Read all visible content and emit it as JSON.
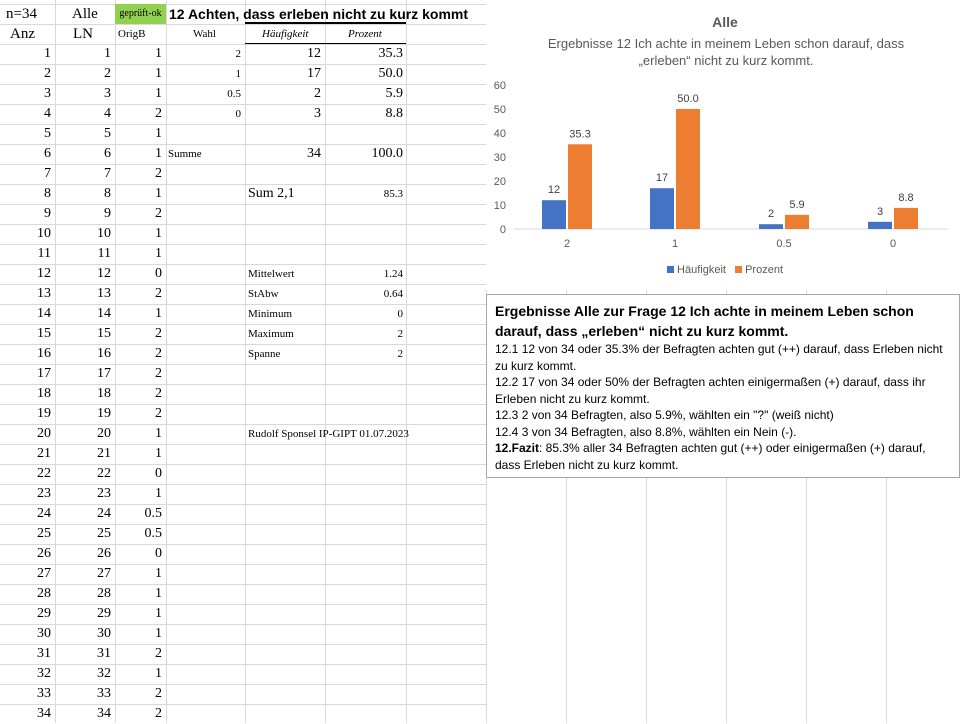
{
  "header": {
    "n": "n=34",
    "group": "Alle",
    "status": "geprüft-ok",
    "status_color": "#92d050",
    "title": "12 Achten, dass erleben nicht zu kurz kommt"
  },
  "columns": {
    "anz": "Anz",
    "ln": "LN",
    "origb": "OrigB",
    "wahl": "Wahl",
    "haeufigkeit": "Häufigkeit",
    "prozent": "Prozent"
  },
  "orig_values": [
    "1",
    "1",
    "1",
    "2",
    "1",
    "1",
    "2",
    "1",
    "2",
    "1",
    "1",
    "0",
    "2",
    "1",
    "2",
    "2",
    "2",
    "2",
    "2",
    "1",
    "1",
    "0",
    "1",
    "0.5",
    "0.5",
    "0",
    "1",
    "1",
    "1",
    "1",
    "2",
    "1",
    "2",
    "2"
  ],
  "freq_table": [
    {
      "wahl": "2",
      "haeufigkeit": "12",
      "prozent": "35.3"
    },
    {
      "wahl": "1",
      "haeufigkeit": "17",
      "prozent": "50.0"
    },
    {
      "wahl": "0.5",
      "haeufigkeit": "2",
      "prozent": "5.9"
    },
    {
      "wahl": "0",
      "haeufigkeit": "3",
      "prozent": "8.8"
    }
  ],
  "summe": {
    "label": "Summe",
    "haeufigkeit": "34",
    "prozent": "100.0"
  },
  "sum21": {
    "label": "Sum 2,1",
    "value": "85.3"
  },
  "stats": [
    {
      "label": "Mittelwert",
      "value": "1.24"
    },
    {
      "label": "StAbw",
      "value": "0.64"
    },
    {
      "label": "Minimum",
      "value": "0"
    },
    {
      "label": "Maximum",
      "value": "2"
    },
    {
      "label": "Spanne",
      "value": "2"
    }
  ],
  "author": "Rudolf Sponsel IP-GIPT 01.07.2023",
  "chart_data": {
    "type": "bar",
    "title": "Alle",
    "subtitle": "Ergebnisse  12 Ich achte in meinem Leben schon darauf, dass „erleben“  nicht zu kurz kommt.",
    "categories": [
      "2",
      "1",
      "0.5",
      "0"
    ],
    "series": [
      {
        "name": "Häufigkeit",
        "values": [
          12,
          17,
          2,
          3
        ],
        "color": "#4472c4"
      },
      {
        "name": "Prozent",
        "values": [
          35.3,
          50.0,
          5.9,
          8.8
        ],
        "color": "#ed7d31"
      }
    ],
    "data_labels": [
      [
        "12",
        "17",
        "2",
        "3"
      ],
      [
        "35.3",
        "50.0",
        "5.9",
        "8.8"
      ]
    ],
    "ylim": [
      0,
      60
    ],
    "yticks": [
      "0",
      "10",
      "20",
      "30",
      "40",
      "50",
      "60"
    ],
    "legend": "bottom",
    "grid": false
  },
  "textbox": {
    "heading": "Ergebnisse Alle zur Frage 12 Ich achte in meinem Leben schon darauf, dass „erleben“ nicht zu kurz kommt.",
    "lines": [
      "12.1   12 von 34 oder 35.3% der Befragten achten gut (++) darauf, dass Erleben nicht zu kurz kommt.",
      "12.2   17 von 34 oder 50% der Befragten achten einigermaßen (+) darauf, dass ihr Erleben nicht zu kurz kommt.",
      "12.3  2 von 34 Befragten, also 5.9%, wählten ein \"?\" (weiß nicht)",
      "12.4  3 von 34 Befragten, also 8.8%, wählten ein Nein (-)."
    ],
    "fazit_label": "12.Fazit",
    "fazit_text": ": 85.3%  aller 34 Befragten achten gut (++) oder einigermaßen (+) darauf, dass Erleben nicht zu kurz kommt."
  }
}
